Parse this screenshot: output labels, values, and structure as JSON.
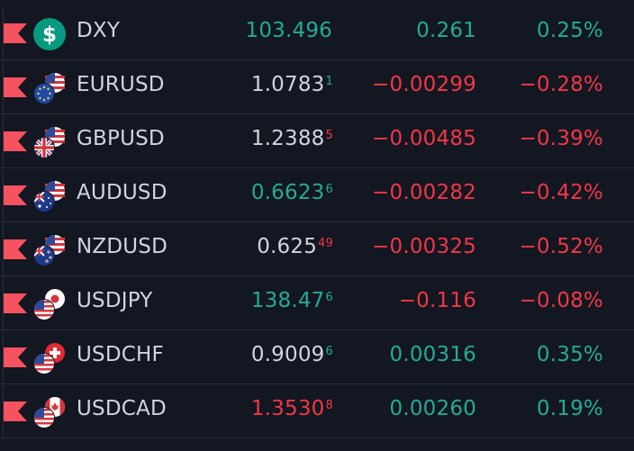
{
  "colors": {
    "green": "#22ab94",
    "red": "#f23645",
    "text": "#d1d4dc",
    "bg": "#131722",
    "flag": "#f7525f"
  },
  "rows": [
    {
      "symbol": "DXY",
      "icon": "dollar-circle-icon",
      "last_main": "103.496",
      "last_sup": "",
      "last_color": "green",
      "sup_color": "green",
      "change": "0.261",
      "change_color": "green",
      "percent": "0.25%",
      "percent_color": "green"
    },
    {
      "symbol": "EURUSD",
      "icon": "eu-us-flags-icon",
      "last_main": "1.0783",
      "last_sup": "1",
      "last_color": "white",
      "sup_color": "green",
      "change": "−0.00299",
      "change_color": "red",
      "percent": "−0.28%",
      "percent_color": "red"
    },
    {
      "symbol": "GBPUSD",
      "icon": "gb-us-flags-icon",
      "last_main": "1.2388",
      "last_sup": "5",
      "last_color": "white",
      "sup_color": "red",
      "change": "−0.00485",
      "change_color": "red",
      "percent": "−0.39%",
      "percent_color": "red"
    },
    {
      "symbol": "AUDUSD",
      "icon": "au-us-flags-icon",
      "last_main": "0.6623",
      "last_sup": "6",
      "last_color": "green",
      "sup_color": "green",
      "change": "−0.00282",
      "change_color": "red",
      "percent": "−0.42%",
      "percent_color": "red"
    },
    {
      "symbol": "NZDUSD",
      "icon": "nz-us-flags-icon",
      "last_main": "0.625",
      "last_sup": "49",
      "last_color": "white",
      "sup_color": "red",
      "change": "−0.00325",
      "change_color": "red",
      "percent": "−0.52%",
      "percent_color": "red"
    },
    {
      "symbol": "USDJPY",
      "icon": "us-jp-flags-icon",
      "last_main": "138.47",
      "last_sup": "6",
      "last_color": "green",
      "sup_color": "green",
      "change": "−0.116",
      "change_color": "red",
      "percent": "−0.08%",
      "percent_color": "red"
    },
    {
      "symbol": "USDCHF",
      "icon": "us-ch-flags-icon",
      "last_main": "0.9009",
      "last_sup": "6",
      "last_color": "white",
      "sup_color": "green",
      "change": "0.00316",
      "change_color": "green",
      "percent": "0.35%",
      "percent_color": "green"
    },
    {
      "symbol": "USDCAD",
      "icon": "us-ca-flags-icon",
      "last_main": "1.3530",
      "last_sup": "8",
      "last_color": "red",
      "sup_color": "red",
      "change": "0.00260",
      "change_color": "green",
      "percent": "0.19%",
      "percent_color": "green"
    }
  ]
}
